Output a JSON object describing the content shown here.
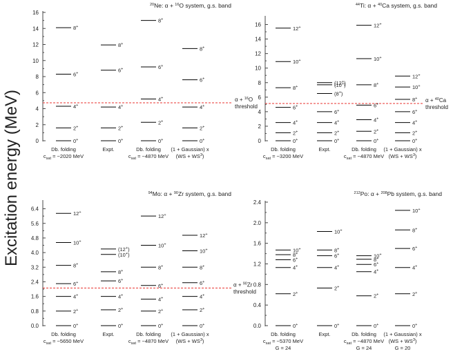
{
  "figure": {
    "ylabel": "Excitation energy (MeV)"
  },
  "chart_data": [
    {
      "type": "level-scheme",
      "title_parts": {
        "pre": "",
        "a": "20",
        "nucl": "Ne: α + ",
        "b": "16",
        "post": "O system, g.s. band"
      },
      "ylim": [
        0,
        16
      ],
      "yticks": [
        0,
        2,
        4,
        6,
        8,
        10,
        12,
        14,
        16
      ],
      "threshold": 4.73,
      "threshold_label": {
        "a": "α + ",
        "b": "16",
        "c": "O",
        "d": "threshold"
      },
      "columns": [
        {
          "name": "Db. folding",
          "line2": "c",
          "sub": "sat",
          "line2b": " = −2020 MeV",
          "levels": [
            {
              "e": 0,
              "j": "0",
              "s": "+"
            },
            {
              "e": 1.6,
              "j": "2",
              "s": "+"
            },
            {
              "e": 4.3,
              "j": "4",
              "s": "+"
            },
            {
              "e": 8.3,
              "j": "6",
              "s": "+"
            },
            {
              "e": 14.1,
              "j": "8",
              "s": "+"
            }
          ]
        },
        {
          "name": "Expt.",
          "line2": "",
          "sub": "",
          "line2b": "",
          "levels": [
            {
              "e": 0,
              "j": "0",
              "s": "+"
            },
            {
              "e": 1.6,
              "j": "2",
              "s": "+"
            },
            {
              "e": 4.2,
              "j": "4",
              "s": "+"
            },
            {
              "e": 8.8,
              "j": "6",
              "s": "+"
            },
            {
              "e": 11.95,
              "j": "8",
              "s": "+"
            }
          ]
        },
        {
          "name": "Db. folding",
          "line2": "c",
          "sub": "sat",
          "line2b": " = −4870 MeV",
          "levels": [
            {
              "e": 0,
              "j": "0",
              "s": "+"
            },
            {
              "e": 2.3,
              "j": "2",
              "s": "+"
            },
            {
              "e": 5.2,
              "j": "4",
              "s": "+"
            },
            {
              "e": 9.2,
              "j": "6",
              "s": "+"
            },
            {
              "e": 15.0,
              "j": "8",
              "s": "+"
            }
          ]
        },
        {
          "name": "(1 + Gaussian) x",
          "line2": "(WS + WS",
          "sub": "",
          "sup2": "3",
          "line2b": ")",
          "levels": [
            {
              "e": 0,
              "j": "0",
              "s": "+"
            },
            {
              "e": 1.6,
              "j": "2",
              "s": "+"
            },
            {
              "e": 4.2,
              "j": "4",
              "s": "+"
            },
            {
              "e": 7.6,
              "j": "6",
              "s": "+"
            },
            {
              "e": 11.5,
              "j": "8",
              "s": "+"
            }
          ]
        }
      ]
    },
    {
      "type": "level-scheme",
      "title_parts": {
        "pre": "",
        "a": "44",
        "nucl": "Ti: α + ",
        "b": "40",
        "post": "Ca system, g.s. band"
      },
      "ylim": [
        0,
        17
      ],
      "yticks": [
        0,
        2,
        4,
        6,
        8,
        10,
        12,
        14,
        16
      ],
      "threshold": 5.13,
      "threshold_label": {
        "a": "α + ",
        "b": "40",
        "c": "Ca",
        "d": "threshold"
      },
      "columns": [
        {
          "name": "Db. folding",
          "line2": "c",
          "sub": "sat",
          "line2b": " = −3200 MeV",
          "levels": [
            {
              "e": 0,
              "j": "0",
              "s": "+"
            },
            {
              "e": 1.1,
              "j": "2",
              "s": "+"
            },
            {
              "e": 2.5,
              "j": "4",
              "s": "+"
            },
            {
              "e": 4.6,
              "j": "6",
              "s": "+"
            },
            {
              "e": 7.3,
              "j": "8",
              "s": "+"
            },
            {
              "e": 10.9,
              "j": "10",
              "s": "+"
            },
            {
              "e": 15.5,
              "j": "12",
              "s": "+"
            }
          ]
        },
        {
          "name": "Expt.",
          "line2": "",
          "sub": "",
          "line2b": "",
          "levels": [
            {
              "e": 0,
              "j": "0",
              "s": "+"
            },
            {
              "e": 1.1,
              "j": "2",
              "s": "+"
            },
            {
              "e": 2.5,
              "j": "4",
              "s": "+"
            },
            {
              "e": 4.0,
              "j": "6",
              "s": "+"
            },
            {
              "e": 6.5,
              "j": "(8",
              "s": "+",
              "close": ")"
            },
            {
              "e": 7.7,
              "j": "(10",
              "s": "+",
              "close": ")"
            },
            {
              "e": 8.0,
              "j": "(12",
              "s": "+",
              "close": ")"
            }
          ]
        },
        {
          "name": "Db. folding",
          "line2": "c",
          "sub": "sat",
          "line2b": " = −4870 MeV",
          "levels": [
            {
              "e": 0,
              "j": "0",
              "s": "+"
            },
            {
              "e": 1.3,
              "j": "2",
              "s": "+"
            },
            {
              "e": 2.9,
              "j": "4",
              "s": "+"
            },
            {
              "e": 4.9,
              "j": "6",
              "s": "+"
            },
            {
              "e": 7.7,
              "j": "8",
              "s": "+"
            },
            {
              "e": 11.3,
              "j": "10",
              "s": "+"
            },
            {
              "e": 15.9,
              "j": "12",
              "s": "+"
            }
          ]
        },
        {
          "name": "(1 + Gaussian) x",
          "line2": "(WS + WS",
          "sub": "",
          "sup2": "3",
          "line2b": ")",
          "levels": [
            {
              "e": 0,
              "j": "0",
              "s": "+"
            },
            {
              "e": 1.1,
              "j": "2",
              "s": "+"
            },
            {
              "e": 2.5,
              "j": "4",
              "s": "+"
            },
            {
              "e": 4.0,
              "j": "6",
              "s": "+"
            },
            {
              "e": 5.7,
              "j": "8",
              "s": "+"
            },
            {
              "e": 7.4,
              "j": "10",
              "s": "+"
            },
            {
              "e": 8.9,
              "j": "12",
              "s": "+"
            }
          ]
        }
      ]
    },
    {
      "type": "level-scheme",
      "title_parts": {
        "pre": "",
        "a": "94",
        "nucl": "Mo: α + ",
        "b": "90",
        "post": "Zr system, g.s. band"
      },
      "ylim": [
        0,
        6.8
      ],
      "yticks": [
        "0.0",
        "0.8",
        "1.6",
        "2.4",
        "3.2",
        "4.0",
        "4.8",
        "5.6",
        "6.4"
      ],
      "threshold": 2.06,
      "threshold_label": {
        "a": "α + ",
        "b": "90",
        "c": "Zr",
        "d": "threshold"
      },
      "columns": [
        {
          "name": "Db. folding",
          "line2": "c",
          "sub": "sat",
          "line2b": " = −5650 MeV",
          "levels": [
            {
              "e": 0,
              "j": "0",
              "s": "+"
            },
            {
              "e": 0.8,
              "j": "2",
              "s": "+"
            },
            {
              "e": 1.6,
              "j": "4",
              "s": "+"
            },
            {
              "e": 2.3,
              "j": "6",
              "s": "+"
            },
            {
              "e": 3.3,
              "j": "8",
              "s": "+"
            },
            {
              "e": 4.55,
              "j": "10",
              "s": "+"
            },
            {
              "e": 6.15,
              "j": "12",
              "s": "+"
            }
          ]
        },
        {
          "name": "Expt.",
          "line2": "",
          "sub": "",
          "line2b": "",
          "levels": [
            {
              "e": 0,
              "j": "0",
              "s": "+"
            },
            {
              "e": 0.87,
              "j": "2",
              "s": "+"
            },
            {
              "e": 1.6,
              "j": "4",
              "s": "+"
            },
            {
              "e": 2.45,
              "j": "6",
              "s": "+"
            },
            {
              "e": 2.95,
              "j": "8",
              "s": "+"
            },
            {
              "e": 3.9,
              "j": "(10",
              "s": "+",
              "close": ")"
            },
            {
              "e": 4.2,
              "j": "(12",
              "s": "+",
              "close": ")"
            }
          ]
        },
        {
          "name": "Db. folding",
          "line2": "c",
          "sub": "sat",
          "line2b": " = −4870 MeV",
          "levels": [
            {
              "e": 0,
              "j": "0",
              "s": "+"
            },
            {
              "e": 0.8,
              "j": "2",
              "s": "+"
            },
            {
              "e": 1.45,
              "j": "4",
              "s": "+"
            },
            {
              "e": 2.2,
              "j": "6",
              "s": "+"
            },
            {
              "e": 3.2,
              "j": "8",
              "s": "+"
            },
            {
              "e": 4.4,
              "j": "10",
              "s": "+"
            },
            {
              "e": 6.0,
              "j": "12",
              "s": "+"
            }
          ]
        },
        {
          "name": "(1 + Gaussian) x",
          "line2": "(WS + WS",
          "sub": "",
          "sup2": "3",
          "line2b": ")",
          "levels": [
            {
              "e": 0,
              "j": "0",
              "s": "+"
            },
            {
              "e": 0.87,
              "j": "2",
              "s": "+"
            },
            {
              "e": 1.6,
              "j": "4",
              "s": "+"
            },
            {
              "e": 2.35,
              "j": "6",
              "s": "+"
            },
            {
              "e": 3.2,
              "j": "8",
              "s": "+"
            },
            {
              "e": 4.1,
              "j": "10",
              "s": "+"
            },
            {
              "e": 4.95,
              "j": "12",
              "s": "+"
            }
          ]
        }
      ]
    },
    {
      "type": "level-scheme",
      "title_parts": {
        "pre": "",
        "a": "212",
        "nucl": "Po: α + ",
        "b": "208",
        "post": "Pb system, g.s. band"
      },
      "ylim": [
        0,
        2.4
      ],
      "yticks": [
        "0.0",
        "0.4",
        "0.8",
        "1.2",
        "1.6",
        "2.0",
        "2.4"
      ],
      "threshold": null,
      "threshold_label": null,
      "columns": [
        {
          "name": "Db. folding",
          "line2": "c",
          "sub": "sat",
          "line2b": " = −5370 MeV",
          "line3": "G = 24",
          "levels": [
            {
              "e": 0,
              "j": "0",
              "s": "+"
            },
            {
              "e": 0.62,
              "j": "2",
              "s": "+"
            },
            {
              "e": 1.13,
              "j": "4",
              "s": "+"
            },
            {
              "e": 1.28,
              "j": "6",
              "s": "+"
            },
            {
              "e": 1.38,
              "j": "8",
              "s": "+"
            },
            {
              "e": 1.47,
              "j": "10",
              "s": "+"
            }
          ]
        },
        {
          "name": "Expt.",
          "line2": "",
          "sub": "",
          "line2b": "",
          "levels": [
            {
              "e": 0,
              "j": "0",
              "s": "+"
            },
            {
              "e": 0.73,
              "j": "2",
              "s": "+"
            },
            {
              "e": 1.13,
              "j": "4",
              "s": "+"
            },
            {
              "e": 1.36,
              "j": "6",
              "s": "+"
            },
            {
              "e": 1.47,
              "j": "8",
              "s": "+"
            },
            {
              "e": 1.83,
              "j": "10",
              "s": "+"
            }
          ]
        },
        {
          "name": "Db. folding",
          "line2": "c",
          "sub": "sat",
          "line2b": " = −4870 MeV",
          "line3": "G = 24",
          "levels": [
            {
              "e": 0,
              "j": "0",
              "s": "+"
            },
            {
              "e": 0.58,
              "j": "2",
              "s": "+"
            },
            {
              "e": 1.05,
              "j": "4",
              "s": "+"
            },
            {
              "e": 1.19,
              "j": "6",
              "s": "+"
            },
            {
              "e": 1.29,
              "j": "8",
              "s": "+"
            },
            {
              "e": 1.36,
              "j": "10",
              "s": "+"
            }
          ]
        },
        {
          "name": "(1 + Gaussian) x",
          "line2": "(WS + WS",
          "sub": "",
          "sup2": "3",
          "line2b": ")",
          "line3": "G = 20",
          "levels": [
            {
              "e": 0,
              "j": "0",
              "s": "+"
            },
            {
              "e": 0.62,
              "j": "2",
              "s": "+"
            },
            {
              "e": 1.13,
              "j": "4",
              "s": "+"
            },
            {
              "e": 1.5,
              "j": "6",
              "s": "+"
            },
            {
              "e": 1.86,
              "j": "8",
              "s": "+"
            },
            {
              "e": 2.24,
              "j": "10",
              "s": "+"
            }
          ]
        }
      ]
    }
  ],
  "colors": {
    "threshold": "#e8322e",
    "line": "#000000",
    "text": "#222222"
  }
}
